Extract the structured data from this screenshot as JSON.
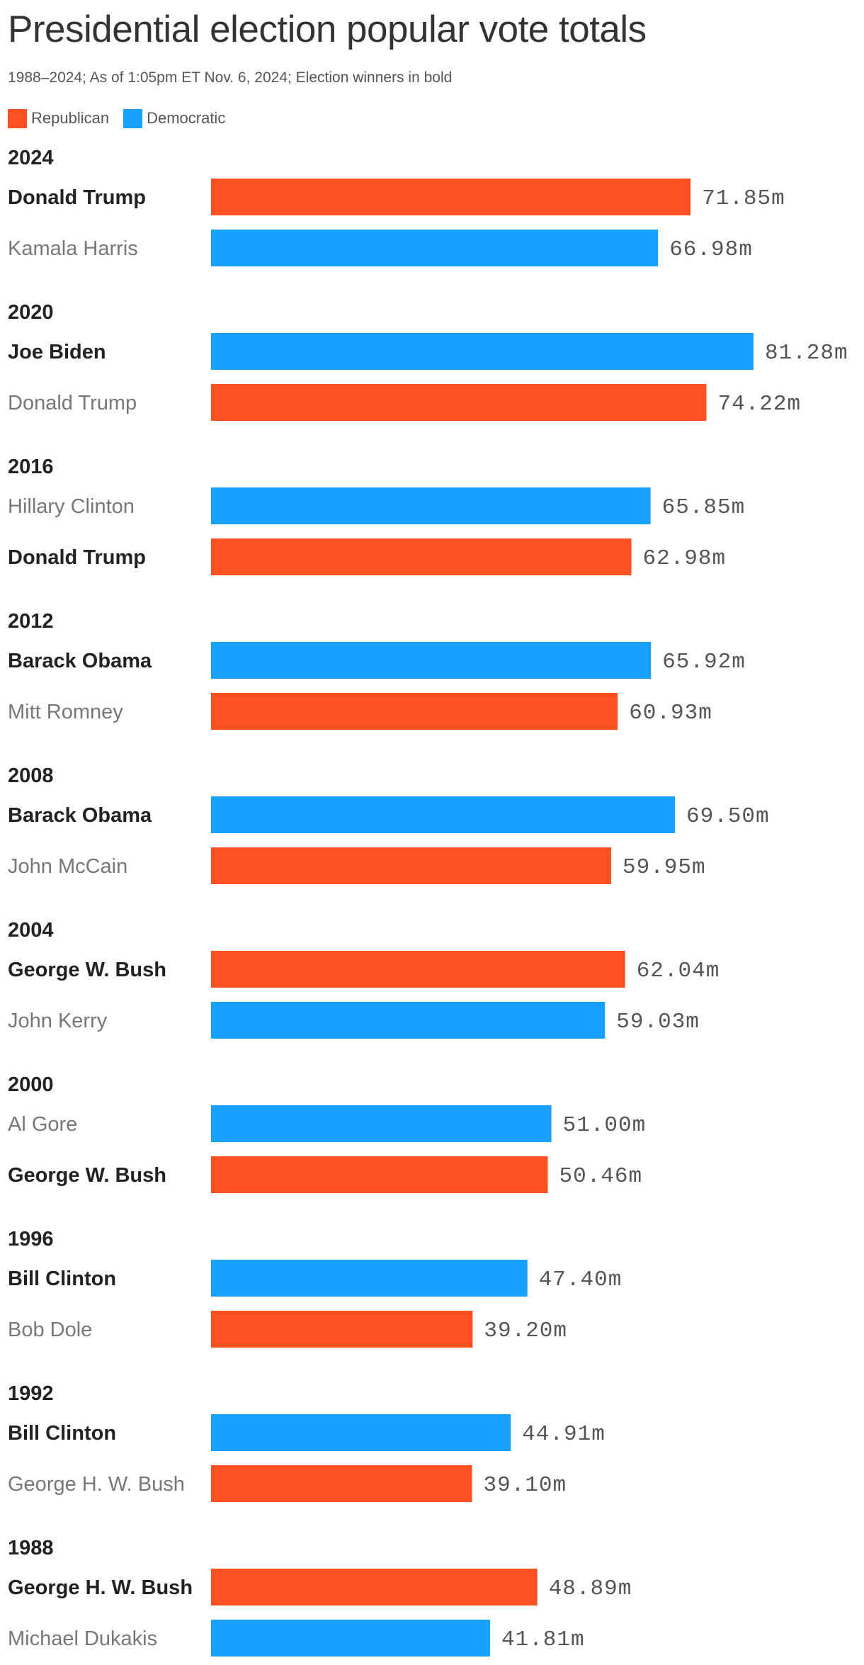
{
  "title": "Presidential election popular vote totals",
  "subtitle": "1988–2024; As of 1:05pm ET Nov. 6, 2024; Election winners in bold",
  "legend": [
    {
      "label": "Republican",
      "color": "#ff5023"
    },
    {
      "label": "Democratic",
      "color": "#1aa1ff"
    }
  ],
  "colors": {
    "Republican": "#ff5023",
    "Democratic": "#1aa1ff"
  },
  "chart_data": {
    "type": "bar",
    "orientation": "horizontal",
    "unit": "m",
    "xlim": [
      0,
      81.28
    ],
    "grid": false,
    "legend_position": "top-left",
    "groups": [
      {
        "year": "2024",
        "rows": [
          {
            "candidate": "Donald Trump",
            "party": "Republican",
            "value": 71.85,
            "label": "71.85m",
            "winner": true
          },
          {
            "candidate": "Kamala Harris",
            "party": "Democratic",
            "value": 66.98,
            "label": "66.98m",
            "winner": false
          }
        ]
      },
      {
        "year": "2020",
        "rows": [
          {
            "candidate": "Joe Biden",
            "party": "Democratic",
            "value": 81.28,
            "label": "81.28m",
            "winner": true
          },
          {
            "candidate": "Donald Trump",
            "party": "Republican",
            "value": 74.22,
            "label": "74.22m",
            "winner": false
          }
        ]
      },
      {
        "year": "2016",
        "rows": [
          {
            "candidate": "Hillary Clinton",
            "party": "Democratic",
            "value": 65.85,
            "label": "65.85m",
            "winner": false
          },
          {
            "candidate": "Donald Trump",
            "party": "Republican",
            "value": 62.98,
            "label": "62.98m",
            "winner": true
          }
        ]
      },
      {
        "year": "2012",
        "rows": [
          {
            "candidate": "Barack Obama",
            "party": "Democratic",
            "value": 65.92,
            "label": "65.92m",
            "winner": true
          },
          {
            "candidate": "Mitt Romney",
            "party": "Republican",
            "value": 60.93,
            "label": "60.93m",
            "winner": false
          }
        ]
      },
      {
        "year": "2008",
        "rows": [
          {
            "candidate": "Barack Obama",
            "party": "Democratic",
            "value": 69.5,
            "label": "69.50m",
            "winner": true
          },
          {
            "candidate": "John McCain",
            "party": "Republican",
            "value": 59.95,
            "label": "59.95m",
            "winner": false
          }
        ]
      },
      {
        "year": "2004",
        "rows": [
          {
            "candidate": "George W. Bush",
            "party": "Republican",
            "value": 62.04,
            "label": "62.04m",
            "winner": true
          },
          {
            "candidate": "John Kerry",
            "party": "Democratic",
            "value": 59.03,
            "label": "59.03m",
            "winner": false
          }
        ]
      },
      {
        "year": "2000",
        "rows": [
          {
            "candidate": "Al Gore",
            "party": "Democratic",
            "value": 51.0,
            "label": "51.00m",
            "winner": false
          },
          {
            "candidate": "George W. Bush",
            "party": "Republican",
            "value": 50.46,
            "label": "50.46m",
            "winner": true
          }
        ]
      },
      {
        "year": "1996",
        "rows": [
          {
            "candidate": "Bill Clinton",
            "party": "Democratic",
            "value": 47.4,
            "label": "47.40m",
            "winner": true
          },
          {
            "candidate": "Bob Dole",
            "party": "Republican",
            "value": 39.2,
            "label": "39.20m",
            "winner": false
          }
        ]
      },
      {
        "year": "1992",
        "rows": [
          {
            "candidate": "Bill Clinton",
            "party": "Democratic",
            "value": 44.91,
            "label": "44.91m",
            "winner": true
          },
          {
            "candidate": "George H. W. Bush",
            "party": "Republican",
            "value": 39.1,
            "label": "39.10m",
            "winner": false
          }
        ]
      },
      {
        "year": "1988",
        "rows": [
          {
            "candidate": "George H. W. Bush",
            "party": "Republican",
            "value": 48.89,
            "label": "48.89m",
            "winner": true
          },
          {
            "candidate": "Michael Dukakis",
            "party": "Democratic",
            "value": 41.81,
            "label": "41.81m",
            "winner": false
          }
        ]
      }
    ]
  }
}
